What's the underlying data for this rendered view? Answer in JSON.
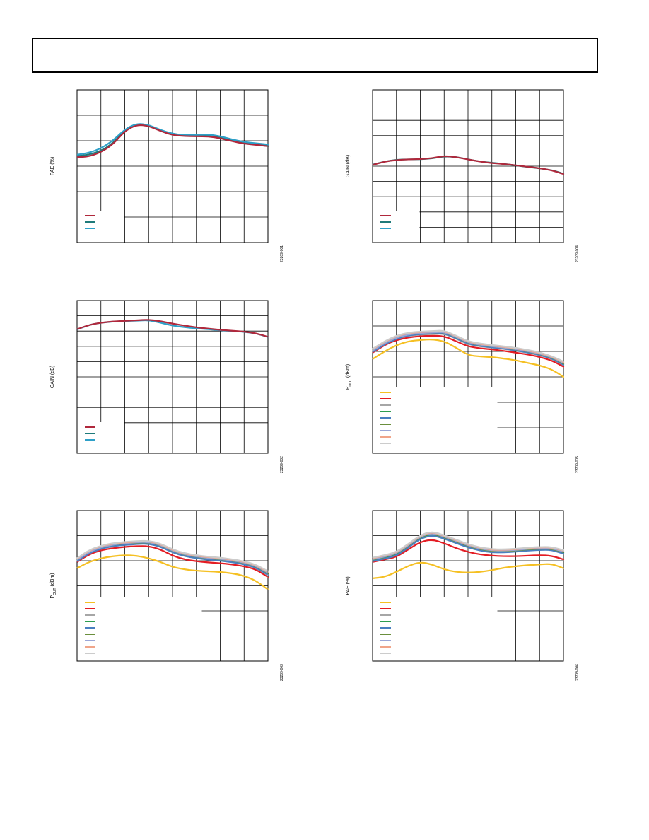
{
  "page": {
    "header": ""
  },
  "colors": {
    "grid": "#000000",
    "red": "#b0283c",
    "teal": "#1f7a7a",
    "cyan": "#2ea0c8",
    "yellow": "#f5c023",
    "brightred": "#e31c24",
    "gray": "#a6a6a6",
    "green": "#2e9e4f",
    "blue": "#4a7fc0",
    "olive": "#6a8f3c",
    "lavender": "#9aa6d8",
    "salmon": "#f0a58a",
    "lightgray": "#cccccc"
  },
  "chart_data": [
    {
      "id": "c1",
      "type": "line",
      "ylabel": "PAE (%)",
      "ylabel_sub": "",
      "code": "23209-001",
      "grid": true,
      "x": [
        0,
        0.5,
        1,
        1.5,
        2,
        2.5,
        3,
        3.5,
        4,
        4.5,
        5,
        5.5,
        6,
        6.5,
        7,
        7.5,
        8
      ],
      "ylim": [
        0,
        6
      ],
      "series": [
        {
          "color": "#1f7a7a",
          "values": [
            3.4,
            3.45,
            3.6,
            3.9,
            4.4,
            4.65,
            4.6,
            4.4,
            4.25,
            4.2,
            4.2,
            4.22,
            4.15,
            4.0,
            3.9,
            3.85,
            3.8
          ]
        },
        {
          "color": "#2ea0c8",
          "values": [
            3.45,
            3.52,
            3.7,
            4.0,
            4.45,
            4.68,
            4.62,
            4.42,
            4.27,
            4.22,
            4.23,
            4.25,
            4.18,
            4.05,
            3.95,
            3.9,
            3.85
          ]
        },
        {
          "color": "#b0283c",
          "values": [
            3.35,
            3.38,
            3.55,
            3.85,
            4.38,
            4.63,
            4.58,
            4.38,
            4.22,
            4.18,
            4.17,
            4.17,
            4.1,
            3.98,
            3.88,
            3.84,
            3.78
          ]
        }
      ],
      "legend": {
        "swatches": [
          "#b0283c",
          "#1f7a7a",
          "#2ea0c8"
        ],
        "labels": [
          "",
          "",
          ""
        ]
      }
    },
    {
      "id": "c2",
      "type": "line",
      "ylabel": "GAIN (dB)",
      "ylabel_sub": "",
      "code": "23209-004",
      "grid": true,
      "x": [
        0,
        0.5,
        1,
        1.5,
        2,
        2.5,
        3,
        3.5,
        4,
        4.5,
        5,
        5.5,
        6,
        6.5,
        7,
        7.5,
        8
      ],
      "ylim": [
        0,
        10
      ],
      "series": [
        {
          "color": "#1f7a7a",
          "values": [
            5.1,
            5.3,
            5.42,
            5.45,
            5.45,
            5.5,
            5.65,
            5.6,
            5.45,
            5.3,
            5.22,
            5.15,
            5.05,
            4.95,
            4.85,
            4.75,
            4.5
          ]
        },
        {
          "color": "#b0283c",
          "values": [
            5.08,
            5.3,
            5.4,
            5.45,
            5.46,
            5.52,
            5.67,
            5.6,
            5.44,
            5.3,
            5.2,
            5.14,
            5.06,
            4.96,
            4.86,
            4.74,
            4.48
          ]
        }
      ],
      "legend": {
        "swatches": [
          "#b0283c",
          "#1f7a7a",
          "#2ea0c8"
        ],
        "labels": [
          "",
          "",
          ""
        ]
      }
    },
    {
      "id": "c3",
      "type": "line",
      "ylabel": "GAIN (dB)",
      "ylabel_sub": "",
      "code": "23209-002",
      "grid": true,
      "x": [
        0,
        0.5,
        1,
        1.5,
        2,
        2.5,
        3,
        3.5,
        4,
        4.5,
        5,
        5.5,
        6,
        6.5,
        7,
        7.5,
        8
      ],
      "ylim": [
        0,
        10
      ],
      "series": [
        {
          "color": "#2ea0c8",
          "values": [
            8.1,
            8.4,
            8.55,
            8.62,
            8.65,
            8.68,
            8.72,
            8.55,
            8.35,
            8.25,
            8.18,
            8.12,
            8.05,
            8.0,
            7.95,
            7.85,
            7.6
          ]
        },
        {
          "color": "#b0283c",
          "values": [
            8.12,
            8.4,
            8.55,
            8.63,
            8.67,
            8.7,
            8.75,
            8.65,
            8.48,
            8.36,
            8.24,
            8.16,
            8.08,
            8.02,
            7.96,
            7.86,
            7.62
          ]
        }
      ],
      "legend": {
        "swatches": [
          "#b0283c",
          "#1f7a7a",
          "#2ea0c8"
        ],
        "labels": [
          "",
          "",
          ""
        ]
      }
    },
    {
      "id": "c4",
      "type": "line",
      "ylabel": "P",
      "ylabel_sub": "OUT",
      "ylabel_tail": " (dBm)",
      "code": "23209-005",
      "grid": true,
      "x": [
        0,
        0.5,
        1,
        1.5,
        2,
        2.5,
        3,
        3.5,
        4,
        4.5,
        5,
        5.5,
        6,
        6.5,
        7,
        7.5,
        8
      ],
      "ylim": [
        0,
        6
      ],
      "series": [
        {
          "color": "#f5c023",
          "values": [
            3.7,
            4.0,
            4.25,
            4.4,
            4.45,
            4.48,
            4.4,
            4.15,
            3.85,
            3.8,
            3.78,
            3.72,
            3.65,
            3.55,
            3.45,
            3.3,
            3.0
          ]
        },
        {
          "color": "#e31c24",
          "values": [
            3.95,
            4.25,
            4.45,
            4.55,
            4.6,
            4.62,
            4.6,
            4.4,
            4.2,
            4.12,
            4.08,
            4.02,
            3.95,
            3.88,
            3.78,
            3.65,
            3.4
          ]
        },
        {
          "color": "#a6a6a6",
          "values": [
            4.0,
            4.3,
            4.5,
            4.62,
            4.66,
            4.68,
            4.7,
            4.5,
            4.28,
            4.2,
            4.15,
            4.1,
            4.03,
            3.95,
            3.85,
            3.72,
            3.48
          ]
        },
        {
          "color": "#2e9e4f",
          "values": [
            4.02,
            4.32,
            4.53,
            4.65,
            4.7,
            4.72,
            4.74,
            4.54,
            4.32,
            4.23,
            4.18,
            4.13,
            4.06,
            3.98,
            3.88,
            3.75,
            3.5
          ]
        },
        {
          "color": "#4a7fc0",
          "values": [
            3.98,
            4.28,
            4.5,
            4.63,
            4.68,
            4.7,
            4.72,
            4.52,
            4.3,
            4.21,
            4.16,
            4.11,
            4.04,
            3.96,
            3.86,
            3.73,
            3.47
          ]
        },
        {
          "color": "#6a8f3c",
          "values": [
            4.05,
            4.35,
            4.56,
            4.68,
            4.72,
            4.74,
            4.76,
            4.56,
            4.34,
            4.25,
            4.2,
            4.15,
            4.08,
            4.0,
            3.9,
            3.77,
            3.52
          ]
        },
        {
          "color": "#9aa6d8",
          "values": [
            4.03,
            4.33,
            4.55,
            4.67,
            4.72,
            4.74,
            4.77,
            4.57,
            4.35,
            4.26,
            4.2,
            4.15,
            4.09,
            4.01,
            3.91,
            3.78,
            3.55
          ]
        },
        {
          "color": "#f0a58a",
          "values": [
            4.08,
            4.38,
            4.6,
            4.72,
            4.76,
            4.78,
            4.8,
            4.6,
            4.38,
            4.29,
            4.23,
            4.18,
            4.12,
            4.04,
            3.94,
            3.8,
            3.58
          ]
        },
        {
          "color": "#cccccc",
          "values": [
            4.1,
            4.4,
            4.62,
            4.74,
            4.78,
            4.8,
            4.82,
            4.62,
            4.4,
            4.31,
            4.25,
            4.2,
            4.14,
            4.06,
            3.96,
            3.82,
            3.6
          ]
        }
      ],
      "legend": {
        "swatches": [
          "#f5c023",
          "#e31c24",
          "#a6a6a6",
          "#2e9e4f",
          "#4a7fc0",
          "#6a8f3c",
          "#9aa6d8",
          "#f0a58a",
          "#cccccc"
        ],
        "labels": [
          "",
          "",
          "",
          "",
          "",
          "",
          "",
          "",
          ""
        ]
      }
    },
    {
      "id": "c5",
      "type": "line",
      "ylabel": "P",
      "ylabel_sub": "OUT",
      "ylabel_tail": " (dBm)",
      "code": "23209-003",
      "grid": true,
      "x": [
        0,
        0.5,
        1,
        1.5,
        2,
        2.5,
        3,
        3.5,
        4,
        4.5,
        5,
        5.5,
        6,
        6.5,
        7,
        7.5,
        8
      ],
      "ylim": [
        0,
        6
      ],
      "series": [
        {
          "color": "#f5c023",
          "values": [
            3.7,
            3.95,
            4.1,
            4.18,
            4.22,
            4.2,
            4.1,
            3.95,
            3.75,
            3.65,
            3.6,
            3.58,
            3.55,
            3.5,
            3.4,
            3.2,
            2.85
          ]
        },
        {
          "color": "#e31c24",
          "values": [
            3.95,
            4.25,
            4.42,
            4.5,
            4.55,
            4.58,
            4.58,
            4.45,
            4.2,
            4.05,
            3.98,
            3.93,
            3.9,
            3.85,
            3.78,
            3.65,
            3.35
          ]
        },
        {
          "color": "#a6a6a6",
          "values": [
            4.0,
            4.32,
            4.5,
            4.6,
            4.65,
            4.68,
            4.7,
            4.58,
            4.35,
            4.2,
            4.12,
            4.06,
            4.02,
            3.96,
            3.88,
            3.74,
            3.45
          ]
        },
        {
          "color": "#2e9e4f",
          "values": [
            4.03,
            4.34,
            4.52,
            4.62,
            4.67,
            4.7,
            4.72,
            4.6,
            4.37,
            4.22,
            4.15,
            4.1,
            4.05,
            3.99,
            3.91,
            3.77,
            3.48
          ]
        },
        {
          "color": "#4a7fc0",
          "values": [
            3.98,
            4.3,
            4.48,
            4.58,
            4.63,
            4.66,
            4.68,
            4.56,
            4.33,
            4.18,
            4.1,
            4.04,
            4.0,
            3.94,
            3.86,
            3.72,
            3.43
          ]
        },
        {
          "color": "#6a8f3c",
          "values": [
            4.05,
            4.36,
            4.54,
            4.64,
            4.69,
            4.72,
            4.74,
            4.62,
            4.39,
            4.24,
            4.16,
            4.1,
            4.06,
            4.0,
            3.92,
            3.78,
            3.5
          ]
        },
        {
          "color": "#9aa6d8",
          "values": [
            4.04,
            4.35,
            4.54,
            4.64,
            4.7,
            4.73,
            4.75,
            4.63,
            4.4,
            4.25,
            4.17,
            4.11,
            4.07,
            4.01,
            3.93,
            3.79,
            3.52
          ]
        },
        {
          "color": "#f0a58a",
          "values": [
            4.08,
            4.4,
            4.58,
            4.68,
            4.73,
            4.76,
            4.78,
            4.66,
            4.43,
            4.28,
            4.2,
            4.14,
            4.1,
            4.04,
            3.96,
            3.82,
            3.55
          ]
        },
        {
          "color": "#cccccc",
          "values": [
            4.1,
            4.42,
            4.6,
            4.7,
            4.75,
            4.78,
            4.8,
            4.68,
            4.45,
            4.3,
            4.22,
            4.16,
            4.12,
            4.06,
            3.98,
            3.84,
            3.58
          ]
        }
      ],
      "legend": {
        "swatches": [
          "#f5c023",
          "#e31c24",
          "#a6a6a6",
          "#2e9e4f",
          "#4a7fc0",
          "#6a8f3c",
          "#9aa6d8",
          "#f0a58a",
          "#cccccc"
        ],
        "labels": [
          "",
          "",
          "",
          "",
          "",
          "",
          "",
          "",
          ""
        ]
      }
    },
    {
      "id": "c6",
      "type": "line",
      "ylabel": "PAE (%)",
      "ylabel_sub": "",
      "code": "23209-006",
      "grid": true,
      "x": [
        0,
        0.5,
        1,
        1.5,
        2,
        2.5,
        3,
        3.5,
        4,
        4.5,
        5,
        5.5,
        6,
        6.5,
        7,
        7.5,
        8
      ],
      "ylim": [
        0,
        6
      ],
      "series": [
        {
          "color": "#f5c023",
          "values": [
            3.3,
            3.35,
            3.55,
            3.8,
            3.95,
            3.85,
            3.65,
            3.55,
            3.52,
            3.55,
            3.62,
            3.72,
            3.78,
            3.82,
            3.85,
            3.88,
            3.7
          ]
        },
        {
          "color": "#e31c24",
          "values": [
            3.95,
            4.05,
            4.15,
            4.45,
            4.75,
            4.85,
            4.7,
            4.5,
            4.35,
            4.25,
            4.2,
            4.18,
            4.18,
            4.2,
            4.22,
            4.2,
            4.05
          ]
        },
        {
          "color": "#a6a6a6",
          "values": [
            4.0,
            4.1,
            4.22,
            4.55,
            4.9,
            5.05,
            4.9,
            4.72,
            4.55,
            4.42,
            4.35,
            4.35,
            4.38,
            4.42,
            4.45,
            4.45,
            4.3
          ]
        },
        {
          "color": "#2e9e4f",
          "values": [
            4.02,
            4.12,
            4.25,
            4.58,
            4.93,
            5.08,
            4.92,
            4.75,
            4.57,
            4.44,
            4.37,
            4.36,
            4.39,
            4.43,
            4.46,
            4.46,
            4.32
          ]
        },
        {
          "color": "#4a7fc0",
          "values": [
            3.98,
            4.08,
            4.2,
            4.52,
            4.88,
            5.02,
            4.88,
            4.7,
            4.53,
            4.4,
            4.33,
            4.33,
            4.36,
            4.4,
            4.43,
            4.43,
            4.28
          ]
        },
        {
          "color": "#6a8f3c",
          "values": [
            4.05,
            4.15,
            4.28,
            4.6,
            4.95,
            5.1,
            4.94,
            4.77,
            4.59,
            4.46,
            4.39,
            4.38,
            4.41,
            4.45,
            4.48,
            4.48,
            4.34
          ]
        },
        {
          "color": "#9aa6d8",
          "values": [
            4.06,
            4.16,
            4.3,
            4.62,
            4.97,
            5.12,
            4.96,
            4.79,
            4.61,
            4.48,
            4.41,
            4.4,
            4.43,
            4.47,
            4.5,
            4.5,
            4.36
          ]
        },
        {
          "color": "#f0a58a",
          "values": [
            4.1,
            4.2,
            4.33,
            4.65,
            5.0,
            5.15,
            4.99,
            4.82,
            4.64,
            4.51,
            4.44,
            4.43,
            4.46,
            4.5,
            4.53,
            4.53,
            4.4
          ]
        },
        {
          "color": "#cccccc",
          "values": [
            4.12,
            4.22,
            4.35,
            4.67,
            5.02,
            5.17,
            5.01,
            4.84,
            4.66,
            4.53,
            4.46,
            4.45,
            4.48,
            4.52,
            4.55,
            4.55,
            4.42
          ]
        }
      ],
      "legend": {
        "swatches": [
          "#f5c023",
          "#e31c24",
          "#a6a6a6",
          "#2e9e4f",
          "#4a7fc0",
          "#6a8f3c",
          "#9aa6d8",
          "#f0a58a",
          "#cccccc"
        ],
        "labels": [
          "",
          "",
          "",
          "",
          "",
          "",
          "",
          "",
          ""
        ]
      }
    }
  ]
}
